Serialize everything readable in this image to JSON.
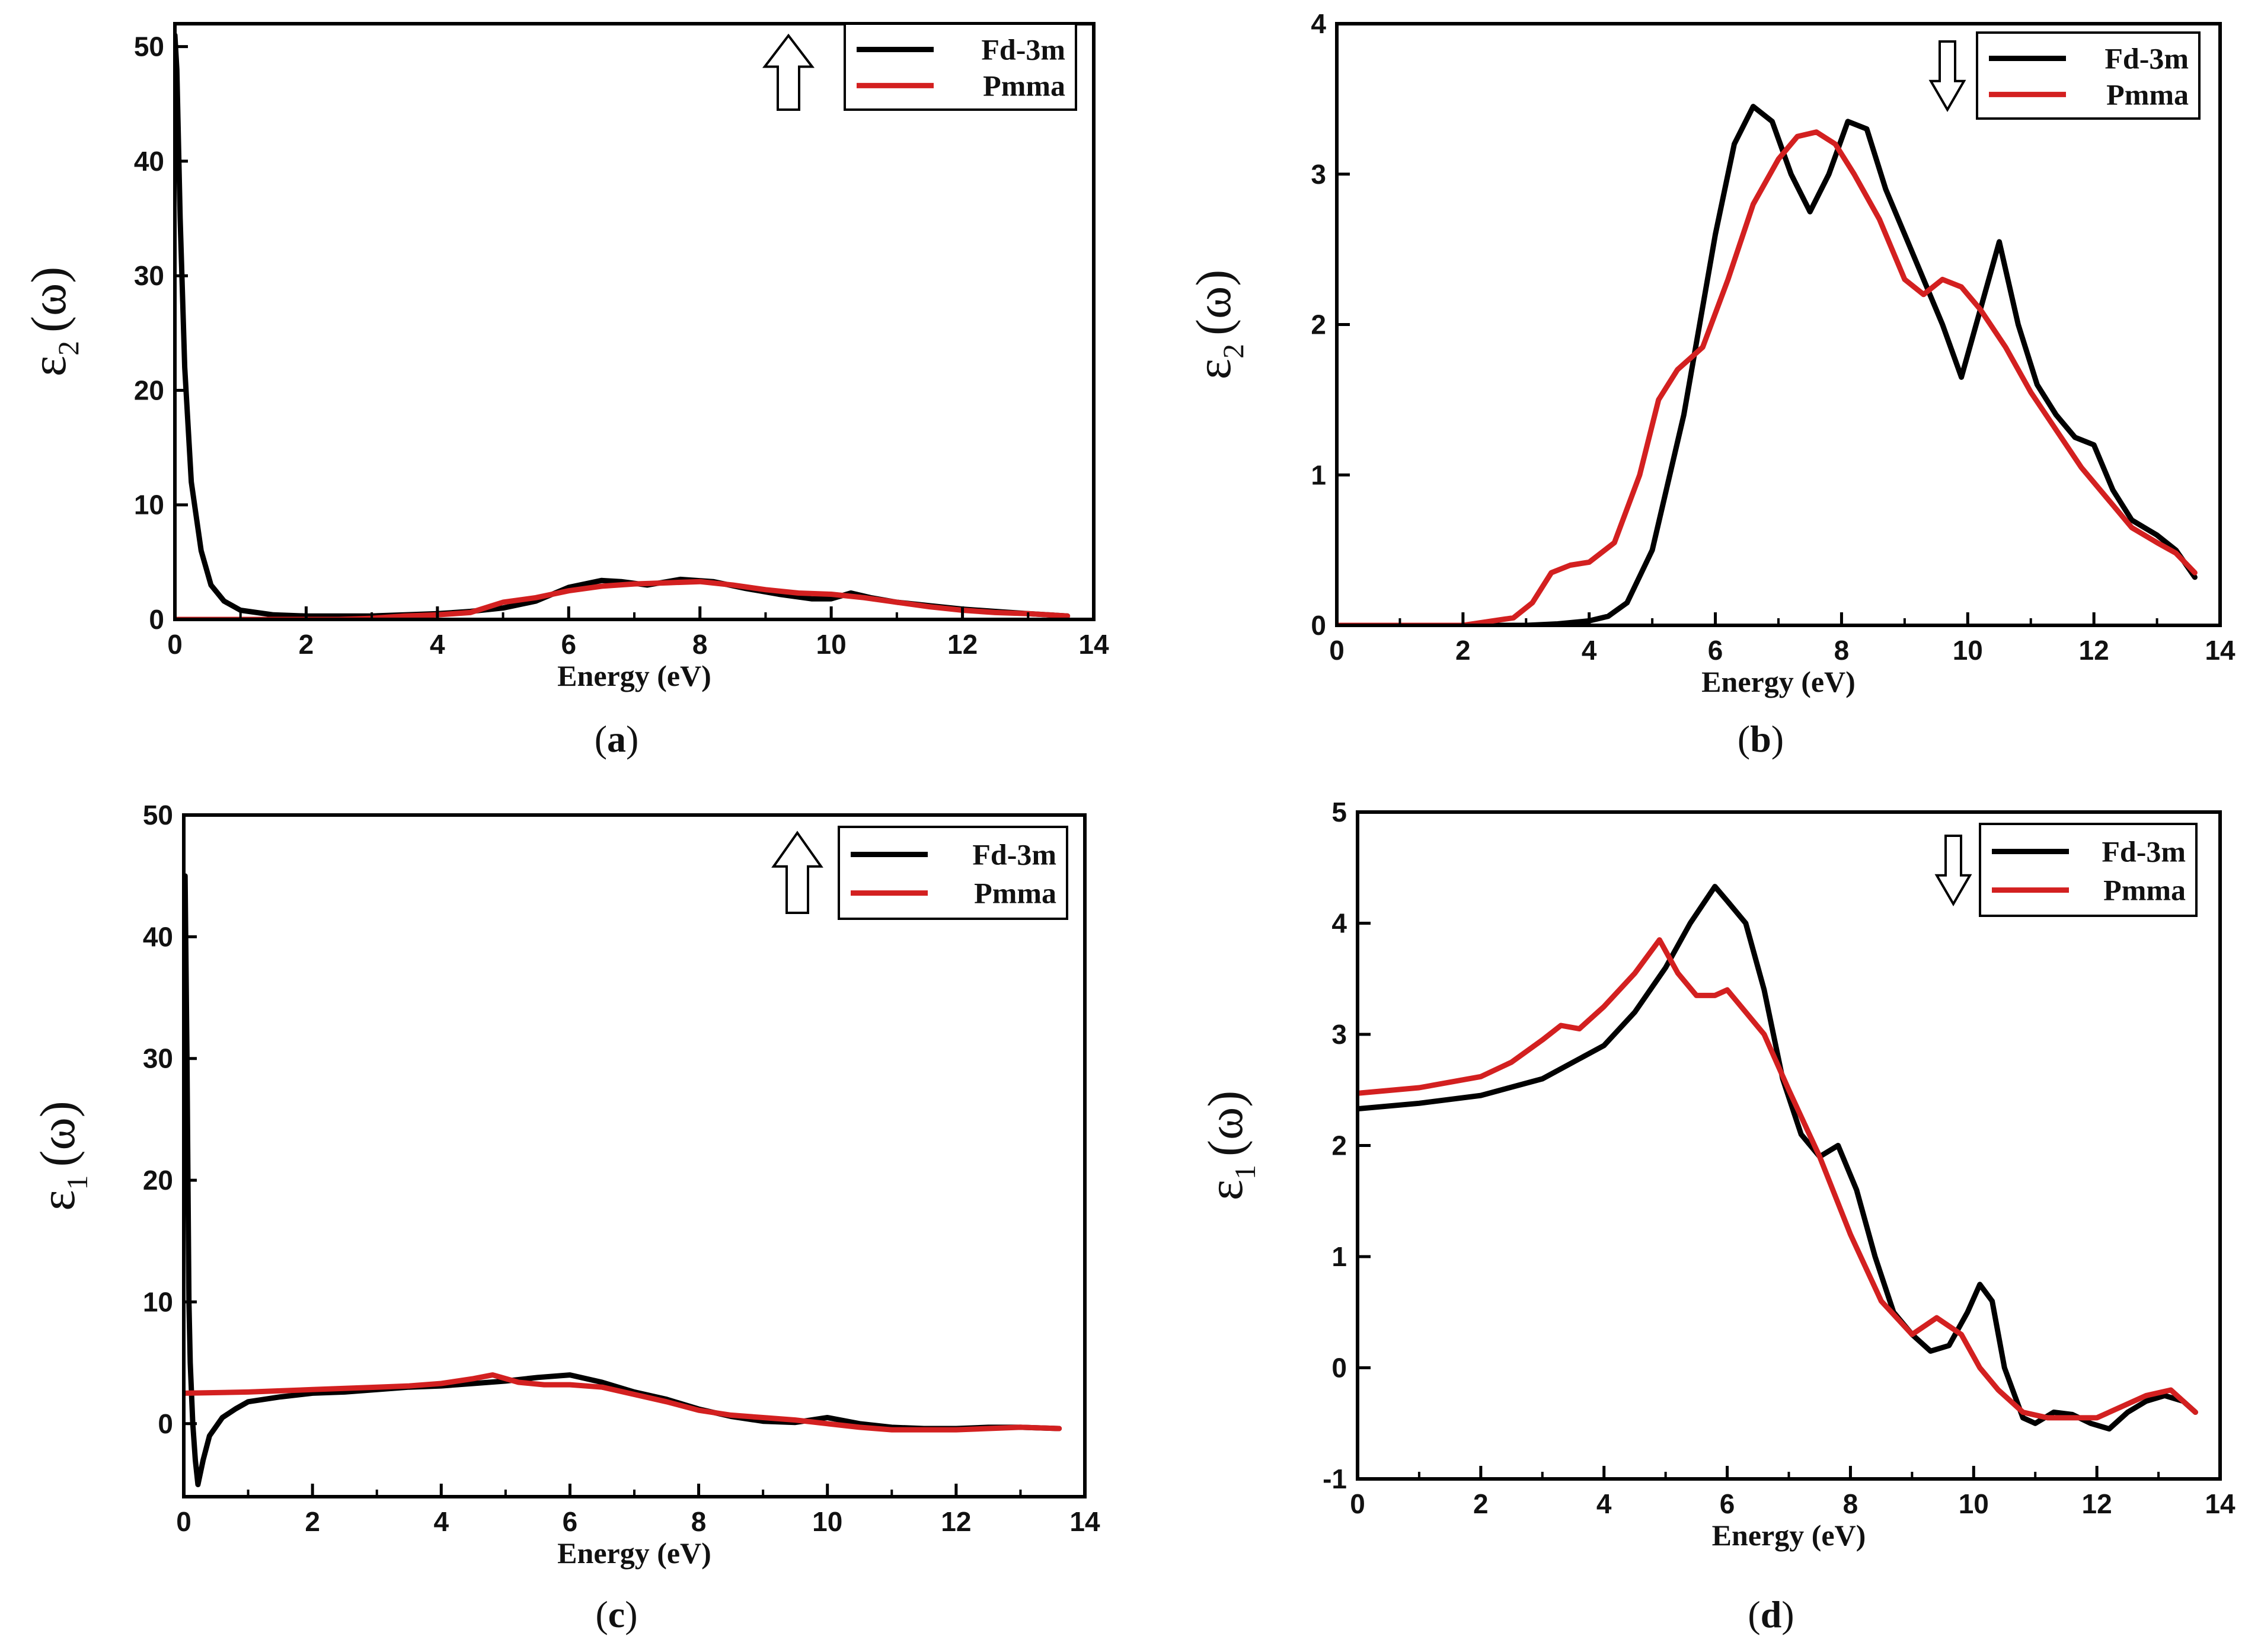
{
  "chart_data": [
    {
      "id": "a",
      "type": "line",
      "caption_letter": "a",
      "xlabel": "Energy (eV)",
      "ylabel_symbol": "ε",
      "ylabel_sub": "2",
      "ylabel_arg": "(ω)",
      "xlim": [
        0,
        14
      ],
      "ylim": [
        0,
        52
      ],
      "xticks": [
        "0",
        "2",
        "4",
        "6",
        "8",
        "10",
        "12",
        "14"
      ],
      "xtick_values": [
        0,
        2,
        4,
        6,
        8,
        10,
        12,
        14
      ],
      "yticks": [
        "0",
        "10",
        "20",
        "30",
        "40",
        "50"
      ],
      "ytick_values": [
        0,
        10,
        20,
        30,
        40,
        50
      ],
      "arrow": "up",
      "legend": [
        "Fd-3m",
        "Pmma"
      ],
      "series": [
        {
          "name": "Fd-3m",
          "color": "#000000",
          "x": [
            0,
            0.03,
            0.08,
            0.15,
            0.25,
            0.4,
            0.55,
            0.75,
            1.0,
            1.5,
            2.0,
            2.5,
            3.0,
            3.5,
            4.0,
            4.5,
            5.0,
            5.5,
            6.0,
            6.5,
            6.8,
            7.2,
            7.7,
            8.2,
            8.7,
            9.2,
            9.7,
            10.0,
            10.3,
            10.6,
            11.0,
            11.5,
            12.0,
            12.5,
            13.0,
            13.6
          ],
          "y": [
            51,
            48,
            35,
            22,
            12,
            6,
            3,
            1.6,
            0.8,
            0.4,
            0.3,
            0.3,
            0.3,
            0.4,
            0.5,
            0.7,
            1.0,
            1.6,
            2.8,
            3.4,
            3.3,
            3.0,
            3.5,
            3.3,
            2.7,
            2.2,
            1.8,
            1.8,
            2.3,
            1.9,
            1.5,
            1.2,
            0.9,
            0.7,
            0.5,
            0.3
          ]
        },
        {
          "name": "Pmma",
          "color": "#d32020",
          "x": [
            0,
            1,
            2,
            2.5,
            3.0,
            3.5,
            4.0,
            4.5,
            5.0,
            5.5,
            6.0,
            6.5,
            7.0,
            7.5,
            8.0,
            8.5,
            9.0,
            9.5,
            10.0,
            10.5,
            11.0,
            11.5,
            12.0,
            12.5,
            13.0,
            13.6
          ],
          "y": [
            0,
            0,
            0,
            0,
            0.1,
            0.3,
            0.4,
            0.6,
            1.5,
            1.9,
            2.5,
            2.9,
            3.1,
            3.2,
            3.3,
            3.0,
            2.6,
            2.3,
            2.2,
            1.9,
            1.5,
            1.1,
            0.8,
            0.6,
            0.5,
            0.3
          ]
        }
      ]
    },
    {
      "id": "b",
      "type": "line",
      "caption_letter": "b",
      "xlabel": "Energy (eV)",
      "ylabel_symbol": "ε",
      "ylabel_sub": "2",
      "ylabel_arg": "(ω)",
      "xlim": [
        0,
        14
      ],
      "ylim": [
        0,
        4
      ],
      "xticks": [
        "0",
        "2",
        "4",
        "6",
        "8",
        "10",
        "12",
        "14"
      ],
      "xtick_values": [
        0,
        2,
        4,
        6,
        8,
        10,
        12,
        14
      ],
      "yticks": [
        "0",
        "1",
        "2",
        "3",
        "4"
      ],
      "ytick_values": [
        0,
        1,
        2,
        3,
        4
      ],
      "arrow": "down",
      "legend": [
        "Fd-3m",
        "Pmma"
      ],
      "series": [
        {
          "name": "Fd-3m",
          "color": "#000000",
          "x": [
            0,
            2,
            3,
            3.5,
            4.0,
            4.3,
            4.6,
            5.0,
            5.5,
            6.0,
            6.3,
            6.6,
            6.9,
            7.2,
            7.5,
            7.8,
            8.1,
            8.4,
            8.7,
            9.0,
            9.3,
            9.6,
            9.9,
            10.2,
            10.5,
            10.8,
            11.1,
            11.4,
            11.7,
            12.0,
            12.3,
            12.6,
            13.0,
            13.3,
            13.6
          ],
          "y": [
            0,
            0,
            0,
            0.01,
            0.03,
            0.06,
            0.15,
            0.5,
            1.4,
            2.6,
            3.2,
            3.45,
            3.35,
            3.0,
            2.75,
            3.0,
            3.35,
            3.3,
            2.9,
            2.6,
            2.3,
            2.0,
            1.65,
            2.1,
            2.55,
            2.0,
            1.6,
            1.4,
            1.25,
            1.2,
            0.9,
            0.7,
            0.6,
            0.5,
            0.32
          ]
        },
        {
          "name": "Pmma",
          "color": "#d32020",
          "x": [
            0,
            2.0,
            2.8,
            3.1,
            3.4,
            3.7,
            4.0,
            4.4,
            4.8,
            5.1,
            5.4,
            5.8,
            6.2,
            6.6,
            7.0,
            7.3,
            7.6,
            7.9,
            8.2,
            8.6,
            9.0,
            9.3,
            9.6,
            9.9,
            10.2,
            10.6,
            11.0,
            11.4,
            11.8,
            12.2,
            12.6,
            13.0,
            13.3,
            13.6
          ],
          "y": [
            0,
            0,
            0.05,
            0.15,
            0.35,
            0.4,
            0.42,
            0.55,
            1.0,
            1.5,
            1.7,
            1.85,
            2.3,
            2.8,
            3.1,
            3.25,
            3.28,
            3.2,
            3.0,
            2.7,
            2.3,
            2.2,
            2.3,
            2.25,
            2.1,
            1.85,
            1.55,
            1.3,
            1.05,
            0.85,
            0.65,
            0.55,
            0.48,
            0.35
          ]
        }
      ]
    },
    {
      "id": "c",
      "type": "line",
      "caption_letter": "c",
      "xlabel": "Energy (eV)",
      "ylabel_symbol": "ε",
      "ylabel_sub": "1",
      "ylabel_arg": "(ω)",
      "xlim": [
        0,
        14
      ],
      "ylim": [
        -6,
        50
      ],
      "xticks": [
        "0",
        "2",
        "4",
        "6",
        "8",
        "10",
        "12",
        "14"
      ],
      "xtick_values": [
        0,
        2,
        4,
        6,
        8,
        10,
        12,
        14
      ],
      "yticks": [
        "0",
        "10",
        "20",
        "30",
        "40",
        "50"
      ],
      "ytick_values": [
        0,
        10,
        20,
        30,
        40,
        50
      ],
      "arrow": "up",
      "legend": [
        "Fd-3m",
        "Pmma"
      ],
      "series": [
        {
          "name": "Fd-3m",
          "color": "#000000",
          "x": [
            0,
            0.02,
            0.05,
            0.08,
            0.1,
            0.14,
            0.18,
            0.22,
            0.3,
            0.4,
            0.6,
            0.8,
            1.0,
            1.5,
            2.0,
            2.5,
            3.0,
            3.5,
            4.0,
            4.5,
            5.0,
            5.5,
            6.0,
            6.5,
            7.0,
            7.5,
            8.0,
            8.5,
            9.0,
            9.5,
            10.0,
            10.5,
            11.0,
            11.5,
            12.0,
            12.5,
            13.0,
            13.6
          ],
          "y": [
            44,
            45,
            30,
            10,
            5,
            0,
            -3,
            -5,
            -3,
            -1,
            0.5,
            1.2,
            1.8,
            2.2,
            2.5,
            2.6,
            2.8,
            3.0,
            3.1,
            3.3,
            3.5,
            3.8,
            4.0,
            3.4,
            2.6,
            2.0,
            1.2,
            0.6,
            0.2,
            0.1,
            0.5,
            0.0,
            -0.3,
            -0.4,
            -0.4,
            -0.3,
            -0.3,
            -0.4
          ]
        },
        {
          "name": "Pmma",
          "color": "#d32020",
          "x": [
            0,
            1,
            2,
            3,
            3.5,
            4.0,
            4.5,
            4.8,
            5.2,
            5.6,
            6.0,
            6.5,
            7.0,
            7.5,
            8.0,
            8.5,
            9.0,
            9.5,
            10.0,
            10.5,
            11.0,
            11.5,
            12.0,
            12.5,
            13.0,
            13.6
          ],
          "y": [
            2.5,
            2.6,
            2.8,
            3.0,
            3.1,
            3.3,
            3.7,
            4.0,
            3.4,
            3.2,
            3.2,
            3.0,
            2.4,
            1.8,
            1.1,
            0.7,
            0.5,
            0.3,
            0.0,
            -0.3,
            -0.5,
            -0.5,
            -0.5,
            -0.4,
            -0.3,
            -0.4
          ]
        }
      ]
    },
    {
      "id": "d",
      "type": "line",
      "caption_letter": "d",
      "xlabel": "Energy (eV)",
      "ylabel_symbol": "ε",
      "ylabel_sub": "1",
      "ylabel_arg": "(ω)",
      "xlim": [
        0,
        14
      ],
      "ylim": [
        -1,
        5
      ],
      "xticks": [
        "0",
        "2",
        "4",
        "6",
        "8",
        "10",
        "12",
        "14"
      ],
      "xtick_values": [
        0,
        2,
        4,
        6,
        8,
        10,
        12,
        14
      ],
      "yticks": [
        "-1",
        "0",
        "1",
        "2",
        "3",
        "4",
        "5"
      ],
      "ytick_values": [
        -1,
        0,
        1,
        2,
        3,
        4,
        5
      ],
      "arrow": "down",
      "legend": [
        "Fd-3m",
        "Pmma"
      ],
      "series": [
        {
          "name": "Fd-3m",
          "color": "#000000",
          "x": [
            0,
            1,
            2,
            3,
            4,
            4.5,
            5.0,
            5.4,
            5.8,
            6.0,
            6.3,
            6.6,
            6.9,
            7.2,
            7.5,
            7.8,
            8.1,
            8.4,
            8.7,
            9.0,
            9.3,
            9.6,
            9.9,
            10.1,
            10.3,
            10.5,
            10.8,
            11.0,
            11.3,
            11.6,
            11.9,
            12.2,
            12.5,
            12.8,
            13.1,
            13.4,
            13.6
          ],
          "y": [
            2.33,
            2.38,
            2.45,
            2.6,
            2.9,
            3.2,
            3.6,
            4.0,
            4.33,
            4.2,
            4.0,
            3.4,
            2.6,
            2.1,
            1.9,
            2.0,
            1.6,
            1.0,
            0.5,
            0.3,
            0.15,
            0.2,
            0.5,
            0.75,
            0.6,
            0.0,
            -0.45,
            -0.5,
            -0.4,
            -0.42,
            -0.5,
            -0.55,
            -0.4,
            -0.3,
            -0.25,
            -0.3,
            -0.4
          ]
        },
        {
          "name": "Pmma",
          "color": "#d32020",
          "x": [
            0,
            1,
            2,
            2.5,
            3.0,
            3.3,
            3.6,
            4.0,
            4.5,
            4.9,
            5.2,
            5.5,
            5.8,
            6.0,
            6.3,
            6.6,
            7.0,
            7.5,
            8.0,
            8.5,
            9.0,
            9.4,
            9.8,
            10.1,
            10.4,
            10.8,
            11.2,
            11.6,
            12.0,
            12.4,
            12.8,
            13.2,
            13.6
          ],
          "y": [
            2.47,
            2.52,
            2.62,
            2.75,
            2.95,
            3.08,
            3.05,
            3.25,
            3.55,
            3.85,
            3.55,
            3.35,
            3.35,
            3.4,
            3.2,
            3.0,
            2.5,
            1.9,
            1.2,
            0.6,
            0.3,
            0.45,
            0.3,
            0.0,
            -0.2,
            -0.4,
            -0.45,
            -0.45,
            -0.45,
            -0.35,
            -0.25,
            -0.2,
            -0.4
          ]
        }
      ]
    }
  ]
}
